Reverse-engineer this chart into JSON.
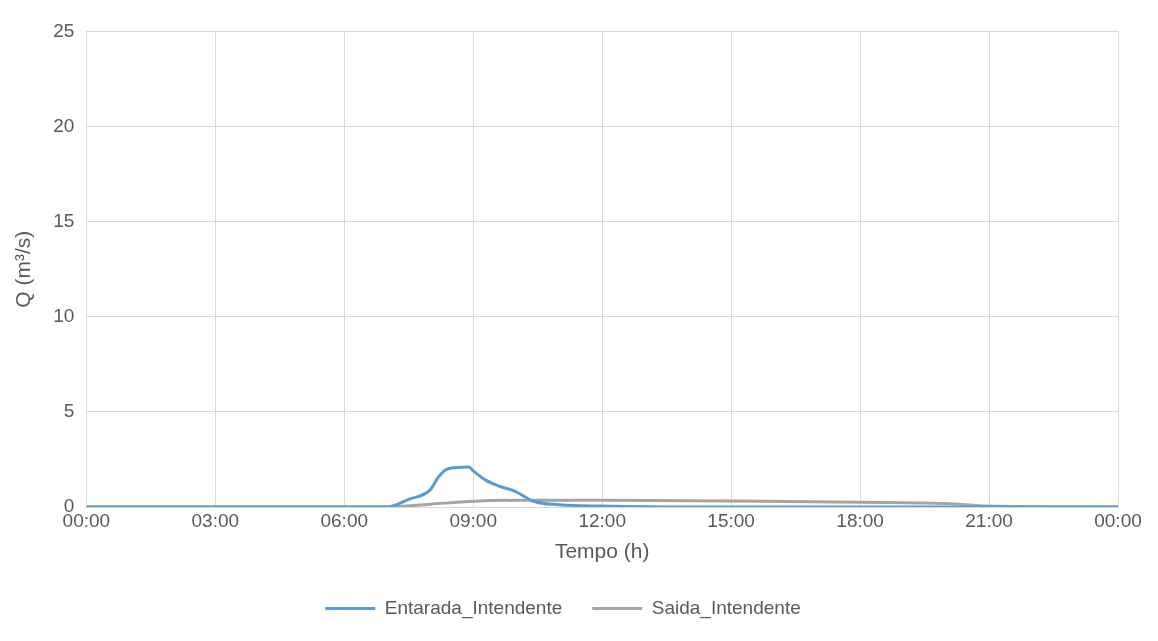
{
  "chart_data": {
    "type": "line",
    "xlabel": "Tempo (h)",
    "ylabel": "Q (m³/s)",
    "xlim": [
      0,
      24
    ],
    "xticks": [
      {
        "value": 0,
        "label": "00:00"
      },
      {
        "value": 3,
        "label": "03:00"
      },
      {
        "value": 6,
        "label": "06:00"
      },
      {
        "value": 9,
        "label": "09:00"
      },
      {
        "value": 12,
        "label": "12:00"
      },
      {
        "value": 15,
        "label": "15:00"
      },
      {
        "value": 18,
        "label": "18:00"
      },
      {
        "value": 21,
        "label": "21:00"
      },
      {
        "value": 24,
        "label": "00:00"
      }
    ],
    "ylim": [
      0,
      25
    ],
    "yticks": [
      0,
      5,
      10,
      15,
      20,
      25
    ],
    "grid": true,
    "legend": "bottom",
    "marker": "none",
    "line_style": "solid",
    "series": [
      {
        "name": "Entarada_Intendente",
        "color": "#5b9bd5",
        "x": [
          0,
          7,
          7.5,
          8,
          8.2,
          8.4,
          8.9,
          9,
          9.3,
          9.6,
          10,
          10.4,
          11,
          12,
          14,
          24
        ],
        "values": [
          0,
          0,
          0.4,
          0.9,
          1.6,
          2.0,
          2.1,
          1.9,
          1.4,
          1.1,
          0.8,
          0.3,
          0.12,
          0.05,
          0,
          0
        ]
      },
      {
        "name": "Saida_Intendente",
        "color": "#a5a5a5",
        "x": [
          0,
          7,
          8,
          9,
          10,
          12,
          15,
          18,
          20,
          21,
          24
        ],
        "values": [
          0,
          0,
          0.15,
          0.3,
          0.35,
          0.35,
          0.32,
          0.25,
          0.18,
          0.05,
          0
        ]
      }
    ]
  }
}
